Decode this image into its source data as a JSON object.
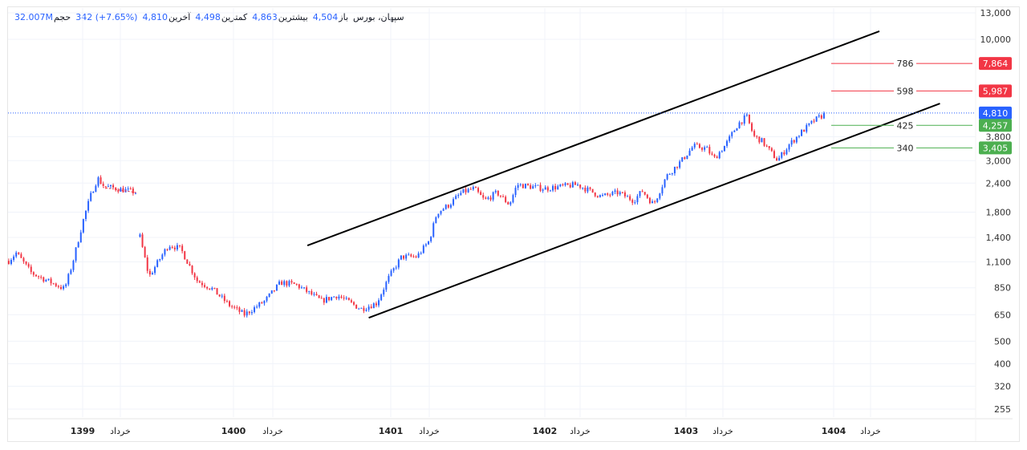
{
  "header": {
    "title": "سپهان، بورس",
    "open_label": "باز",
    "open": "4,504",
    "high_label": "بیشترین",
    "high": "4,863",
    "low_label": "کمترین",
    "low": "4,498",
    "last_label": "آخرین",
    "last": "4,810",
    "change": "342 (+7.65%)",
    "volume_label": "حجم",
    "volume": "32.007M"
  },
  "colors": {
    "up": "#2962ff",
    "down": "#f23645",
    "fib_high": "#f23645",
    "fib_low": "#4caf50",
    "last": "#2962ff",
    "channel": "#000000",
    "grid": "#f0f3fa"
  },
  "chart_data": {
    "type": "candlestick",
    "y_scale": "log",
    "ylim": [
      230,
      13000
    ],
    "y_ticks": [
      13000,
      10000,
      3800,
      3000,
      2400,
      1800,
      1400,
      1100,
      850,
      650,
      500,
      400,
      320,
      255
    ],
    "y_tick_labels": [
      "13,000",
      "10,000",
      "3,800",
      "3,000",
      "2,400",
      "1,800",
      "1,400",
      "1,100",
      "850",
      "650",
      "500",
      "400",
      "320",
      "255"
    ],
    "x_ticks": [
      {
        "t": 1399,
        "label": "1399",
        "bold": true
      },
      {
        "t": 1399.25,
        "label": "خرداد",
        "bold": false
      },
      {
        "t": 1400,
        "label": "1400",
        "bold": true
      },
      {
        "t": 1400.25,
        "label": "خرداد",
        "bold": false
      },
      {
        "t": 1401,
        "label": "1401",
        "bold": true
      },
      {
        "t": 1401.25,
        "label": "خرداد",
        "bold": false
      },
      {
        "t": 1402,
        "label": "1402",
        "bold": true
      },
      {
        "t": 1402.25,
        "label": "خرداد",
        "bold": false
      },
      {
        "t": 1403,
        "label": "1403",
        "bold": true
      },
      {
        "t": 1403.25,
        "label": "خرداد",
        "bold": false
      },
      {
        "t": 1404,
        "label": "1404",
        "bold": true
      },
      {
        "t": 1404.25,
        "label": "خرداد",
        "bold": false
      }
    ],
    "price_path": [
      [
        [
          1398.51,
          1110
        ],
        [
          1398.56,
          1203
        ],
        [
          1398.66,
          985
        ],
        [
          1398.88,
          840
        ],
        [
          1398.93,
          1067
        ],
        [
          1399.01,
          1721
        ],
        [
          1399.06,
          2186
        ],
        [
          1399.1,
          2522
        ],
        [
          1399.14,
          2328
        ],
        [
          1399.36,
          2186
        ]
      ],
      [
        [
          1399.38,
          1410
        ],
        [
          1399.44,
          948
        ],
        [
          1399.52,
          1156
        ],
        [
          1399.57,
          1302
        ],
        [
          1399.65,
          1251
        ],
        [
          1399.76,
          910
        ],
        [
          1399.86,
          840
        ],
        [
          1399.97,
          717
        ],
        [
          1400.07,
          651
        ],
        [
          1400.2,
          746
        ],
        [
          1400.3,
          896
        ],
        [
          1400.4,
          875
        ],
        [
          1400.56,
          746
        ],
        [
          1400.66,
          788
        ],
        [
          1400.81,
          689
        ],
        [
          1400.91,
          729
        ],
        [
          1400.99,
          948
        ],
        [
          1401.07,
          1156
        ],
        [
          1401.17,
          1156
        ],
        [
          1401.25,
          1355
        ],
        [
          1401.3,
          1791
        ],
        [
          1401.38,
          1939
        ],
        [
          1401.46,
          2186
        ],
        [
          1401.54,
          2273
        ],
        [
          1401.61,
          2018
        ],
        [
          1401.69,
          2186
        ],
        [
          1401.77,
          1939
        ],
        [
          1401.82,
          2365
        ],
        [
          1402.0,
          2273
        ],
        [
          1402.23,
          2365
        ],
        [
          1402.4,
          2100
        ],
        [
          1402.52,
          2186
        ],
        [
          1402.63,
          2018
        ],
        [
          1402.69,
          2221
        ],
        [
          1402.77,
          1939
        ],
        [
          1402.86,
          2563
        ],
        [
          1402.97,
          3006
        ],
        [
          1403.05,
          3467
        ],
        [
          1403.14,
          3385
        ],
        [
          1403.19,
          3054
        ],
        [
          1403.27,
          3523
        ],
        [
          1403.35,
          4298
        ],
        [
          1403.41,
          4655
        ],
        [
          1403.46,
          3817
        ],
        [
          1403.51,
          3667
        ],
        [
          1403.62,
          3006
        ],
        [
          1403.7,
          3523
        ],
        [
          1403.78,
          3973
        ],
        [
          1403.87,
          4472
        ],
        [
          1403.95,
          4810
        ]
      ]
    ],
    "last_price": 4810,
    "last_price_label": "4,810",
    "channel_lines": [
      {
        "from": [
          1400.47,
          1292
        ],
        "to": [
          1404.31,
          10830
        ]
      },
      {
        "from": [
          1400.86,
          631
        ],
        "to": [
          1404.72,
          5284
        ]
      }
    ],
    "fib_levels": [
      {
        "label": "786",
        "price": 7864,
        "tag": "7,864",
        "kind": "high"
      },
      {
        "label": "598",
        "price": 5987,
        "tag": "5,987",
        "kind": "high"
      },
      {
        "label": "425",
        "price": 4257,
        "tag": "4,257",
        "kind": "low"
      },
      {
        "label": "340",
        "price": 3405,
        "tag": "3,405",
        "kind": "low"
      }
    ]
  }
}
